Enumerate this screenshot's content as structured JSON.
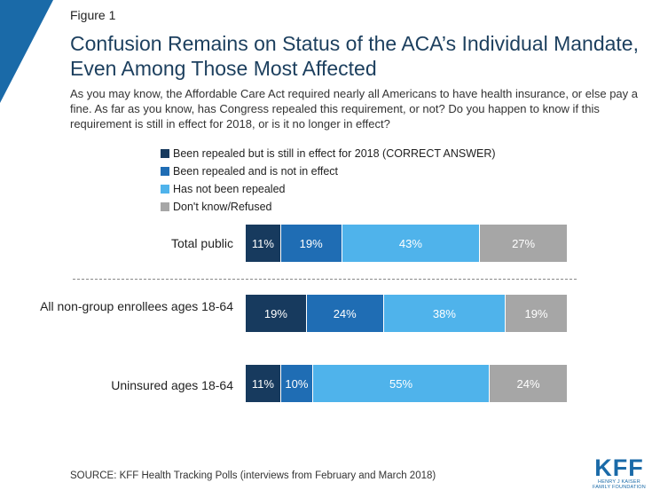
{
  "figure_label": "Figure 1",
  "title": "Confusion Remains on Status of the ACA’s Individual Mandate, Even Among Those Most Affected",
  "question": "As you may know, the Affordable Care Act required nearly all Americans to have health insurance, or else pay a fine. As far as you know, has Congress repealed this requirement, or not? Do you happen to know if this requirement is still in effect for 2018, or is it no longer in effect?",
  "source": "SOURCE: KFF Health Tracking Polls (interviews from February and March 2018)",
  "logo": {
    "main": "KFF",
    "sub_line1": "HENRY J KAISER",
    "sub_line2": "FAMILY FOUNDATION"
  },
  "colors": {
    "accent": "#1a6aa8",
    "title": "#1c3f5e",
    "series": [
      "#173a5e",
      "#1f6db4",
      "#4fb3eb",
      "#a6a6a6"
    ]
  },
  "chart_data": {
    "type": "bar",
    "orientation": "horizontal",
    "stacked": true,
    "legend_position": "top",
    "categories": [
      "Total public",
      "All non-group enrollees ages 18-64",
      "Uninsured ages 18-64"
    ],
    "series": [
      {
        "name": "Been repealed but is still in effect for 2018 (CORRECT ANSWER)",
        "values": [
          11,
          19,
          11
        ]
      },
      {
        "name": "Been repealed and is not in effect",
        "values": [
          19,
          24,
          10
        ]
      },
      {
        "name": "Has not been repealed",
        "values": [
          43,
          38,
          55
        ]
      },
      {
        "name": "Don't know/Refused",
        "values": [
          27,
          19,
          24
        ]
      }
    ],
    "unit": "%"
  }
}
